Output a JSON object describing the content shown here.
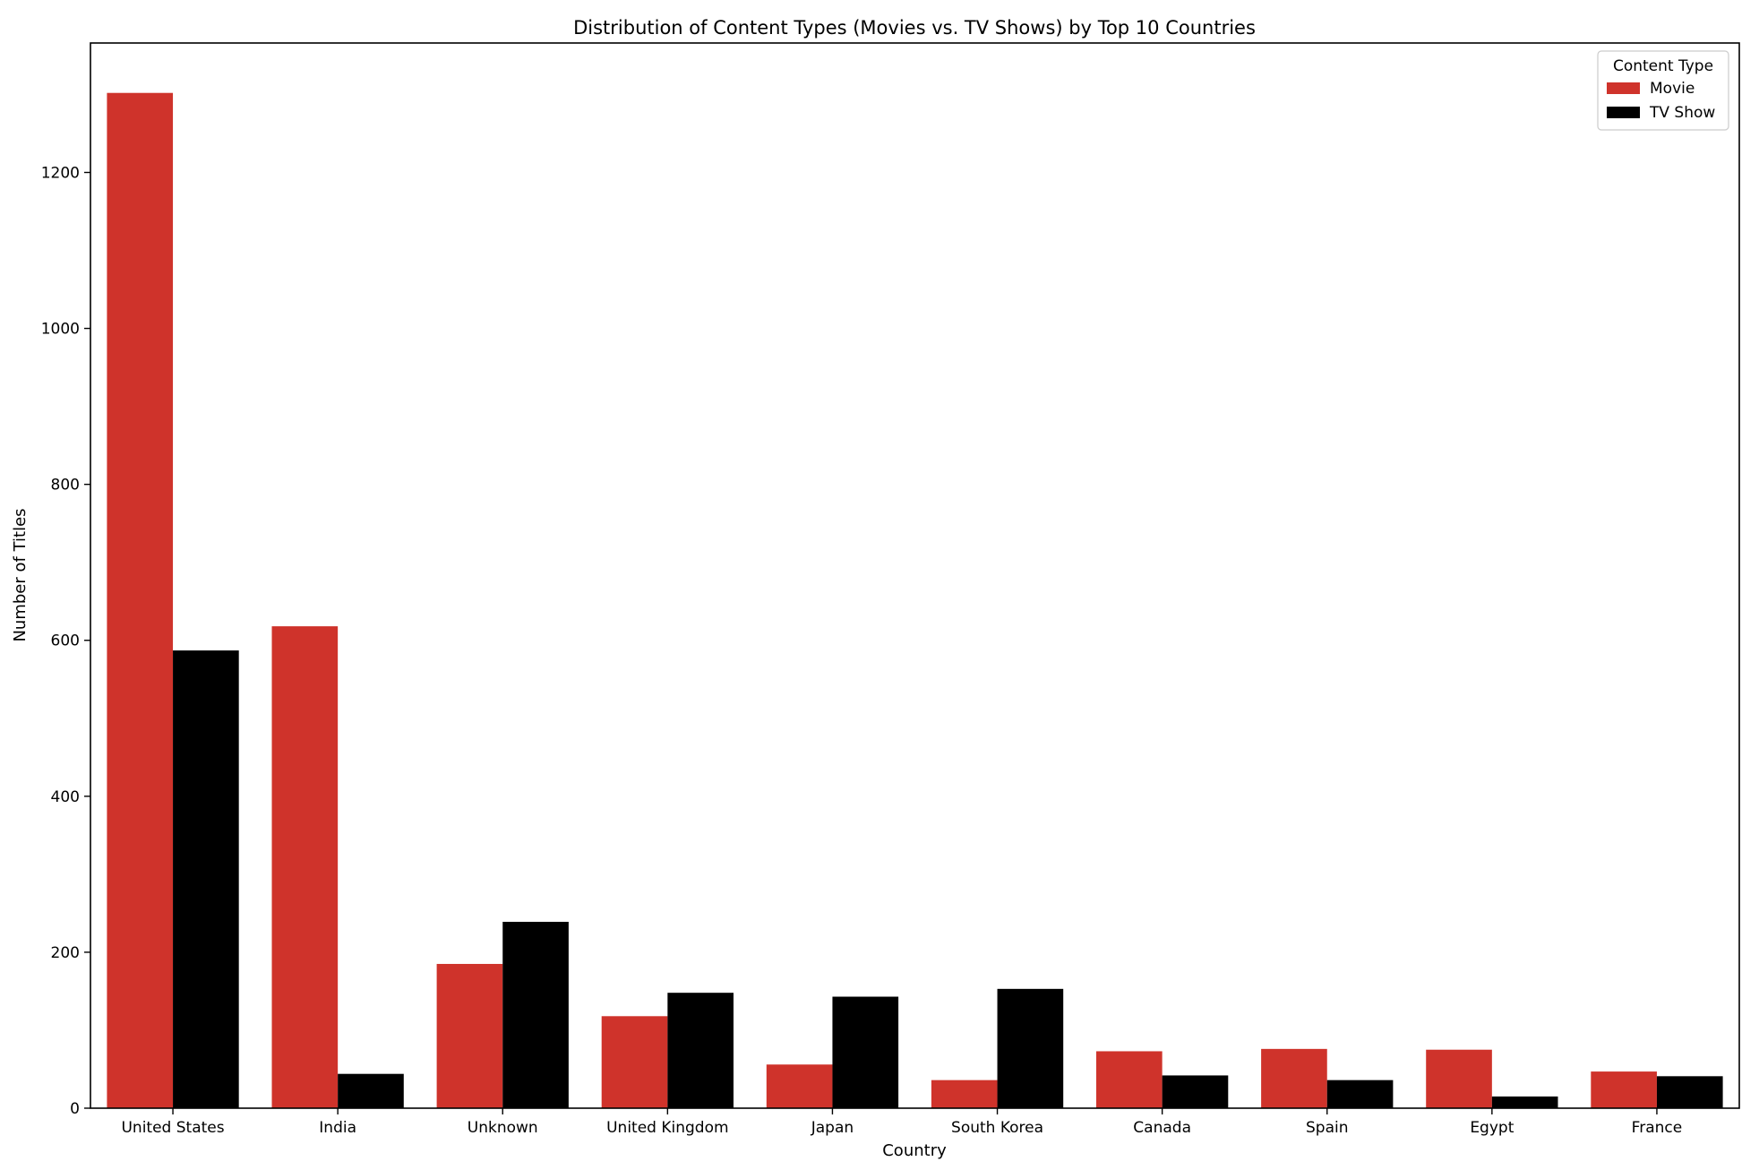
{
  "chart_data": {
    "type": "bar",
    "title": "Distribution of Content Types (Movies vs. TV Shows) by Top 10 Countries",
    "xlabel": "Country",
    "ylabel": "Number of Titles",
    "categories": [
      "United States",
      "India",
      "Unknown",
      "United Kingdom",
      "Japan",
      "South Korea",
      "Canada",
      "Spain",
      "Egypt",
      "France"
    ],
    "series": [
      {
        "name": "Movie",
        "color": "#cf332b",
        "values": [
          1302,
          618,
          185,
          118,
          56,
          36,
          73,
          76,
          75,
          47
        ]
      },
      {
        "name": "TV Show",
        "color": "#000000",
        "values": [
          587,
          44,
          239,
          148,
          143,
          153,
          42,
          36,
          15,
          41
        ]
      }
    ],
    "ylim": [
      0,
      1366
    ],
    "yticks": [
      0,
      200,
      400,
      600,
      800,
      1000,
      1200
    ],
    "grid": false,
    "legend": {
      "title": "Content Type",
      "position": "top-right"
    }
  }
}
